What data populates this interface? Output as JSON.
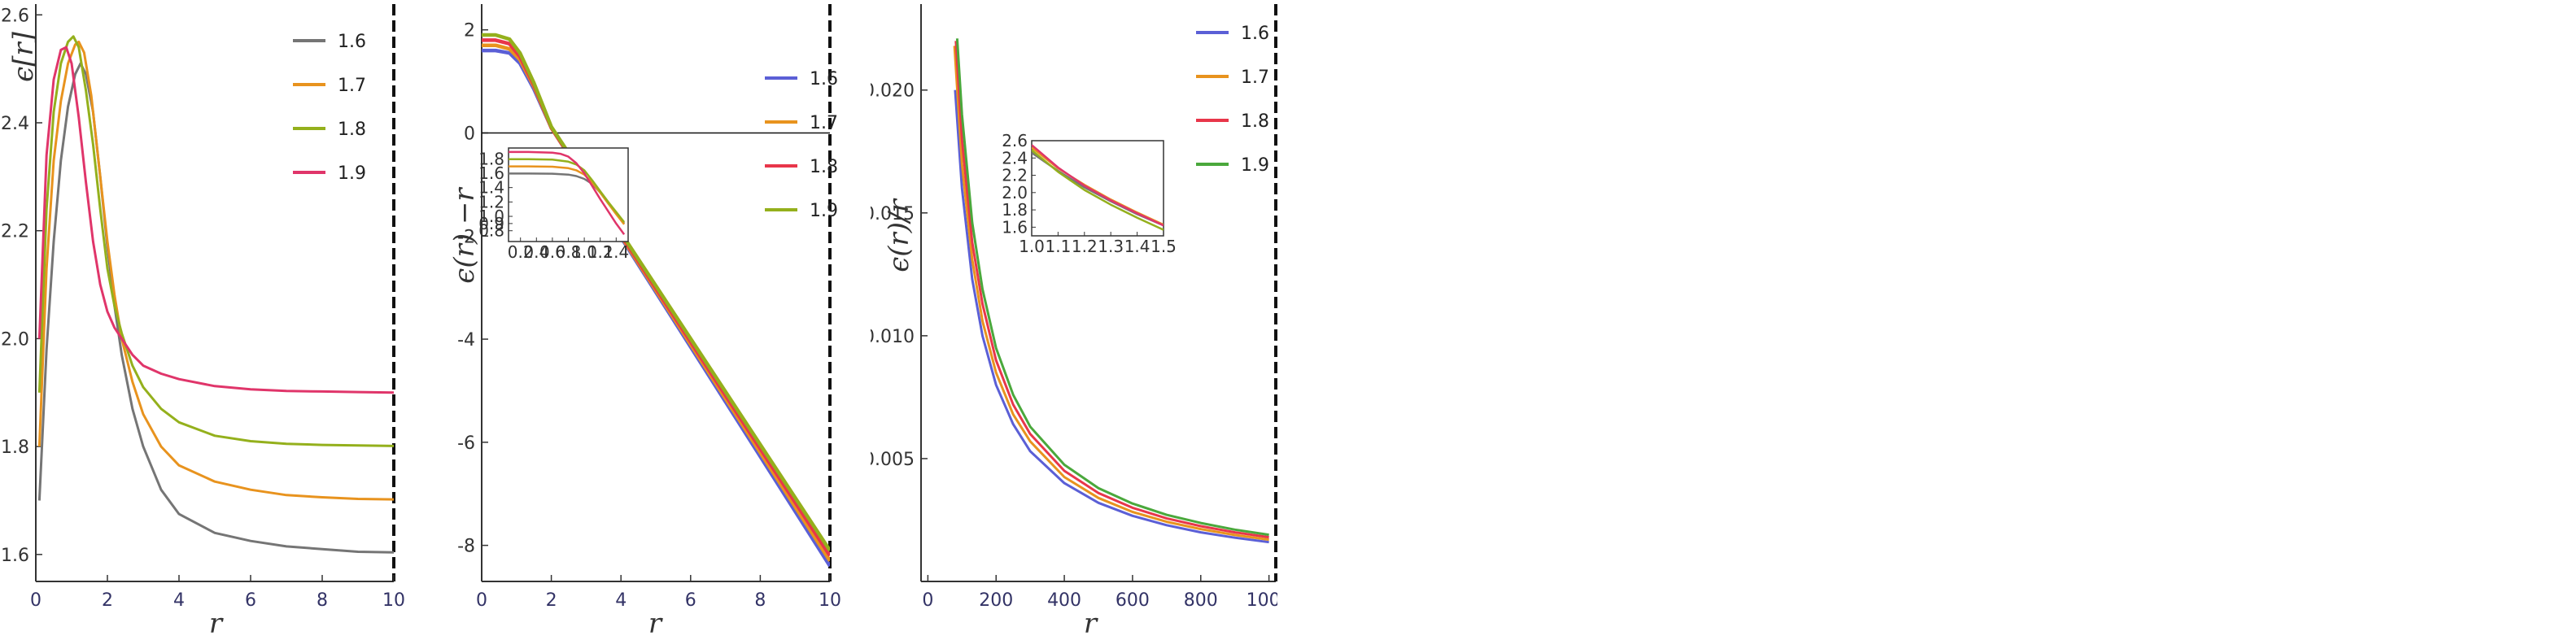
{
  "colors": {
    "gray": "#757575",
    "orange": "#e8931e",
    "olive": "#94b01c",
    "pink": "#e0356a",
    "blue": "#5b5fd6",
    "red": "#e8364a",
    "green": "#4aa83c"
  },
  "chart_data": [
    {
      "type": "line",
      "xlabel": "r",
      "ylabel": "ϵ[r]",
      "xlim": [
        0,
        10
      ],
      "ylim": [
        1.55,
        2.62
      ],
      "xticks": [
        "0",
        "2",
        "4",
        "6",
        "8",
        "10"
      ],
      "yticks": [
        "1.6",
        "1.8",
        "2.0",
        "2.2",
        "2.4",
        "2.6"
      ],
      "legend_position": "right",
      "series": [
        {
          "name": "1.6",
          "color": "gray",
          "x": [
            0.1,
            0.3,
            0.5,
            0.7,
            0.9,
            1.1,
            1.25,
            1.4,
            1.6,
            1.8,
            2.0,
            2.2,
            2.4,
            2.7,
            3.0,
            3.5,
            4.0,
            5.0,
            6.0,
            7.0,
            8.0,
            9.0,
            10.0
          ],
          "y": [
            1.7,
            1.98,
            2.18,
            2.33,
            2.43,
            2.49,
            2.51,
            2.49,
            2.42,
            2.3,
            2.17,
            2.06,
            1.97,
            1.87,
            1.8,
            1.72,
            1.675,
            1.64,
            1.625,
            1.615,
            1.61,
            1.605,
            1.604
          ]
        },
        {
          "name": "1.7",
          "color": "orange",
          "x": [
            0.1,
            0.3,
            0.5,
            0.7,
            0.9,
            1.1,
            1.2,
            1.35,
            1.55,
            1.8,
            2.0,
            2.2,
            2.4,
            2.7,
            3.0,
            3.5,
            4.0,
            5.0,
            6.0,
            7.0,
            8.0,
            9.0,
            10.0
          ],
          "y": [
            1.8,
            2.13,
            2.33,
            2.44,
            2.51,
            2.545,
            2.55,
            2.53,
            2.45,
            2.3,
            2.18,
            2.08,
            2.0,
            1.92,
            1.86,
            1.8,
            1.765,
            1.735,
            1.72,
            1.71,
            1.706,
            1.703,
            1.702
          ]
        },
        {
          "name": "1.8",
          "color": "olive",
          "x": [
            0.1,
            0.3,
            0.5,
            0.7,
            0.9,
            1.05,
            1.2,
            1.4,
            1.6,
            1.8,
            2.0,
            2.2,
            2.4,
            2.7,
            3.0,
            3.5,
            4.0,
            5.0,
            6.0,
            7.0,
            8.0,
            9.0,
            10.0
          ],
          "y": [
            1.9,
            2.24,
            2.42,
            2.51,
            2.55,
            2.56,
            2.54,
            2.46,
            2.36,
            2.24,
            2.13,
            2.06,
            2.01,
            1.95,
            1.91,
            1.87,
            1.845,
            1.82,
            1.81,
            1.805,
            1.803,
            1.802,
            1.801
          ]
        },
        {
          "name": "1.9",
          "color": "pink",
          "x": [
            0.1,
            0.3,
            0.5,
            0.7,
            0.85,
            1.0,
            1.2,
            1.4,
            1.6,
            1.8,
            2.0,
            2.2,
            2.4,
            2.7,
            3.0,
            3.5,
            4.0,
            5.0,
            6.0,
            7.0,
            8.0,
            9.0,
            10.0
          ],
          "y": [
            2.0,
            2.34,
            2.48,
            2.535,
            2.54,
            2.51,
            2.41,
            2.29,
            2.18,
            2.1,
            2.05,
            2.02,
            2.0,
            1.97,
            1.95,
            1.935,
            1.925,
            1.912,
            1.906,
            1.903,
            1.902,
            1.901,
            1.9
          ]
        }
      ]
    },
    {
      "type": "line",
      "xlabel": "r",
      "ylabel": "ϵ(r) −r",
      "xlim": [
        0,
        10
      ],
      "ylim": [
        -8.7,
        2.5
      ],
      "xticks": [
        "0",
        "2",
        "4",
        "6",
        "8",
        "10"
      ],
      "yticks": [
        "2",
        "0",
        "-2",
        "-4",
        "-6",
        "-8"
      ],
      "legend_position": "right",
      "series": [
        {
          "name": "1.6",
          "color": "blue",
          "x": [
            0,
            0.4,
            0.8,
            1.1,
            1.5,
            2.0,
            10.0
          ],
          "y": [
            1.6,
            1.6,
            1.55,
            1.35,
            0.85,
            0.1,
            -8.4
          ]
        },
        {
          "name": "1.7",
          "color": "orange",
          "x": [
            0,
            0.4,
            0.8,
            1.1,
            1.5,
            2.0,
            10.0
          ],
          "y": [
            1.7,
            1.7,
            1.63,
            1.42,
            0.9,
            0.1,
            -8.3
          ]
        },
        {
          "name": "1.8",
          "color": "red",
          "x": [
            0,
            0.4,
            0.8,
            1.1,
            1.5,
            2.0,
            10.0
          ],
          "y": [
            1.8,
            1.8,
            1.73,
            1.48,
            0.93,
            0.1,
            -8.2
          ]
        },
        {
          "name": "1.9",
          "color": "olive",
          "x": [
            0,
            0.4,
            0.8,
            1.1,
            1.5,
            2.0,
            10.0
          ],
          "y": [
            1.9,
            1.9,
            1.82,
            1.55,
            0.97,
            0.12,
            -8.1
          ]
        }
      ],
      "inset": {
        "xlim": [
          0.05,
          1.55
        ],
        "ylim": [
          0.65,
          1.95
        ],
        "xticks": [
          "0.2",
          "0.4",
          "0.6",
          "0.8",
          "1.0",
          "1.2",
          "1.4"
        ],
        "yticks": [
          "1.8",
          "1.6",
          "1.4",
          "1.2",
          "1.0",
          "0.9",
          "0.8"
        ],
        "series": [
          {
            "color": "gray",
            "x": [
              0.05,
              0.3,
              0.6,
              0.8,
              0.9,
              1.0,
              1.1,
              1.2,
              1.3,
              1.4,
              1.5
            ],
            "y": [
              1.595,
              1.595,
              1.593,
              1.58,
              1.56,
              1.52,
              1.45,
              1.33,
              1.18,
              1.04,
              0.9
            ]
          },
          {
            "color": "orange",
            "x": [
              0.05,
              0.3,
              0.6,
              0.8,
              0.9,
              1.0,
              1.1,
              1.2,
              1.3,
              1.4,
              1.5
            ],
            "y": [
              1.695,
              1.695,
              1.69,
              1.67,
              1.64,
              1.58,
              1.47,
              1.33,
              1.18,
              1.03,
              0.89
            ]
          },
          {
            "color": "olive",
            "x": [
              0.05,
              0.3,
              0.6,
              0.8,
              0.9,
              1.0,
              1.1,
              1.2,
              1.3,
              1.4,
              1.5
            ],
            "y": [
              1.795,
              1.795,
              1.79,
              1.76,
              1.72,
              1.64,
              1.5,
              1.35,
              1.2,
              1.06,
              0.92
            ]
          },
          {
            "color": "pink",
            "x": [
              0.05,
              0.3,
              0.6,
              0.7,
              0.8,
              0.9,
              1.0,
              1.1,
              1.2,
              1.3,
              1.4,
              1.5
            ],
            "y": [
              1.895,
              1.895,
              1.885,
              1.87,
              1.83,
              1.74,
              1.6,
              1.42,
              1.24,
              1.07,
              0.9,
              0.75
            ]
          }
        ]
      }
    },
    {
      "type": "line",
      "xlabel": "r",
      "ylabel": "ϵ(r)/r",
      "xlim": [
        -20,
        1020
      ],
      "ylim": [
        0.0,
        0.0235
      ],
      "xticks": [
        "0",
        "200",
        "400",
        "600",
        "800",
        "1000"
      ],
      "yticks": [
        "0.005",
        "0.010",
        "0.015",
        "0.020"
      ],
      "legend_position": "right",
      "series": [
        {
          "name": "1.6",
          "color": "blue",
          "x": [
            80,
            100,
            130,
            160,
            200,
            250,
            300,
            400,
            500,
            600,
            700,
            800,
            900,
            1000
          ],
          "y": [
            0.02,
            0.016,
            0.0123,
            0.01,
            0.008,
            0.0064,
            0.0053,
            0.004,
            0.0032,
            0.00267,
            0.00229,
            0.002,
            0.00178,
            0.0016
          ]
        },
        {
          "name": "1.7",
          "color": "orange",
          "x": [
            78,
            100,
            130,
            160,
            200,
            250,
            300,
            400,
            500,
            600,
            700,
            800,
            900,
            1000
          ],
          "y": [
            0.0218,
            0.017,
            0.0131,
            0.0106,
            0.0085,
            0.0068,
            0.0057,
            0.00425,
            0.0034,
            0.00283,
            0.00243,
            0.00213,
            0.00189,
            0.0017
          ]
        },
        {
          "name": "1.8",
          "color": "red",
          "x": [
            82,
            100,
            130,
            160,
            200,
            250,
            300,
            400,
            500,
            600,
            700,
            800,
            900,
            1000
          ],
          "y": [
            0.022,
            0.018,
            0.0138,
            0.0113,
            0.009,
            0.0072,
            0.006,
            0.0045,
            0.0036,
            0.003,
            0.00257,
            0.00225,
            0.002,
            0.0018
          ]
        },
        {
          "name": "1.9",
          "color": "green",
          "x": [
            86,
            100,
            130,
            160,
            200,
            250,
            300,
            400,
            500,
            600,
            700,
            800,
            900,
            1000
          ],
          "y": [
            0.0221,
            0.019,
            0.0146,
            0.0119,
            0.0095,
            0.0076,
            0.0063,
            0.00475,
            0.0038,
            0.00317,
            0.00271,
            0.00238,
            0.00211,
            0.0019
          ]
        }
      ],
      "inset": {
        "xlim": [
          1.0,
          1.5
        ],
        "ylim": [
          1.5,
          2.6
        ],
        "xticks": [
          "1.0",
          "1.1",
          "1.2",
          "1.3",
          "1.4",
          "1.5"
        ],
        "yticks": [
          "2.6",
          "2.4",
          "2.2",
          "2.0",
          "1.8",
          "1.6"
        ],
        "series": [
          {
            "color": "gray",
            "x": [
              1.0,
              1.1,
              1.2,
              1.3,
              1.4,
              1.5
            ],
            "y": [
              2.46,
              2.25,
              2.06,
              1.9,
              1.75,
              1.62
            ]
          },
          {
            "color": "orange",
            "x": [
              1.0,
              1.1,
              1.2,
              1.3,
              1.4,
              1.5
            ],
            "y": [
              2.52,
              2.28,
              2.09,
              1.92,
              1.77,
              1.63
            ]
          },
          {
            "color": "pink",
            "x": [
              1.0,
              1.1,
              1.2,
              1.3,
              1.4,
              1.5
            ],
            "y": [
              2.55,
              2.29,
              2.08,
              1.91,
              1.76,
              1.62
            ]
          },
          {
            "color": "olive",
            "x": [
              1.0,
              1.1,
              1.2,
              1.3,
              1.4,
              1.5
            ],
            "y": [
              2.49,
              2.24,
              2.03,
              1.86,
              1.71,
              1.57
            ]
          }
        ]
      }
    }
  ]
}
